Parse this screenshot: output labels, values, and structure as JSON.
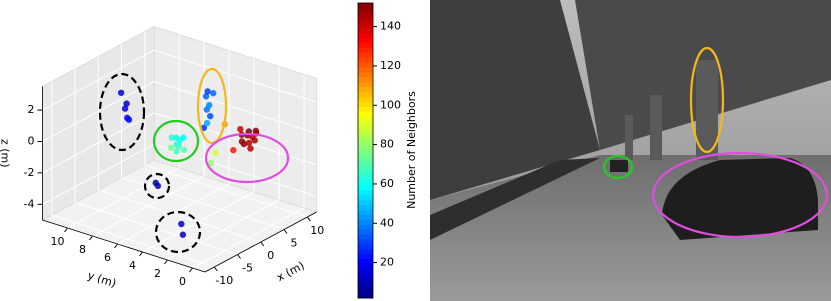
{
  "chart_data": {
    "type": "scatter3d",
    "xlabel": "x (m)",
    "ylabel": "y (m)",
    "zlabel": "z (m)",
    "colorbar_label": "Number of Neighbors",
    "xlim": [
      -12,
      12
    ],
    "ylim": [
      -1,
      12
    ],
    "zlim": [
      -5,
      3.5
    ],
    "clim": [
      2,
      152
    ],
    "xticks": [
      -10,
      -5,
      0,
      5,
      10
    ],
    "yticks": [
      0,
      2,
      4,
      6,
      8,
      10
    ],
    "zticks": [
      -4,
      -2,
      0,
      2
    ],
    "cticks": [
      20,
      40,
      60,
      80,
      100,
      120,
      140
    ],
    "colormap": "jet",
    "x": [
      4,
      4.5,
      5,
      5.5,
      6,
      6.5,
      7,
      5,
      6,
      4.5,
      5.5,
      6.8,
      3.5,
      2,
      2.2,
      1.8,
      2.1,
      2.3,
      1.9,
      2,
      2.4,
      -2,
      -1.5,
      -2.5,
      -1,
      -1.8,
      -2.2,
      -1.2,
      -0.5,
      -5,
      -4.5,
      -5.5,
      -4,
      -5.2,
      -6,
      -6.2,
      -6,
      -5.8,
      0,
      1,
      3,
      -0.5
    ],
    "y": [
      2,
      2.2,
      1.8,
      2,
      2.3,
      1.9,
      2,
      2.5,
      1.6,
      1.5,
      2.4,
      2.2,
      2.5,
      4,
      4.2,
      3.8,
      4.1,
      3.9,
      4,
      4.3,
      3.7,
      5,
      5.2,
      4.8,
      5.1,
      4.9,
      5.3,
      4.7,
      5,
      8,
      8.5,
      7.5,
      8.2,
      7.8,
      5,
      5.1,
      3,
      3.2,
      3,
      3,
      3,
      6
    ],
    "z": [
      0,
      0.3,
      -0.2,
      0.4,
      0,
      -0.3,
      0.2,
      0.5,
      0.3,
      -0.4,
      -0.5,
      -0.2,
      -0.6,
      3,
      2.6,
      2.2,
      1.8,
      1.4,
      1,
      0.6,
      2.9,
      0,
      0.3,
      -0.3,
      0.1,
      -0.1,
      0.4,
      -0.4,
      0.2,
      2,
      2.8,
      1.5,
      1.2,
      2.4,
      -2,
      -1.8,
      -4.6,
      -4,
      -1,
      -0.5,
      1,
      -0.7
    ],
    "c": [
      148,
      150,
      145,
      152,
      149,
      146,
      151,
      140,
      147,
      143,
      150,
      144,
      130,
      30,
      35,
      40,
      38,
      32,
      45,
      28,
      36,
      65,
      62,
      68,
      60,
      66,
      64,
      70,
      58,
      18,
      15,
      22,
      20,
      12,
      10,
      8,
      12,
      14,
      80,
      90,
      110,
      75
    ]
  }
}
